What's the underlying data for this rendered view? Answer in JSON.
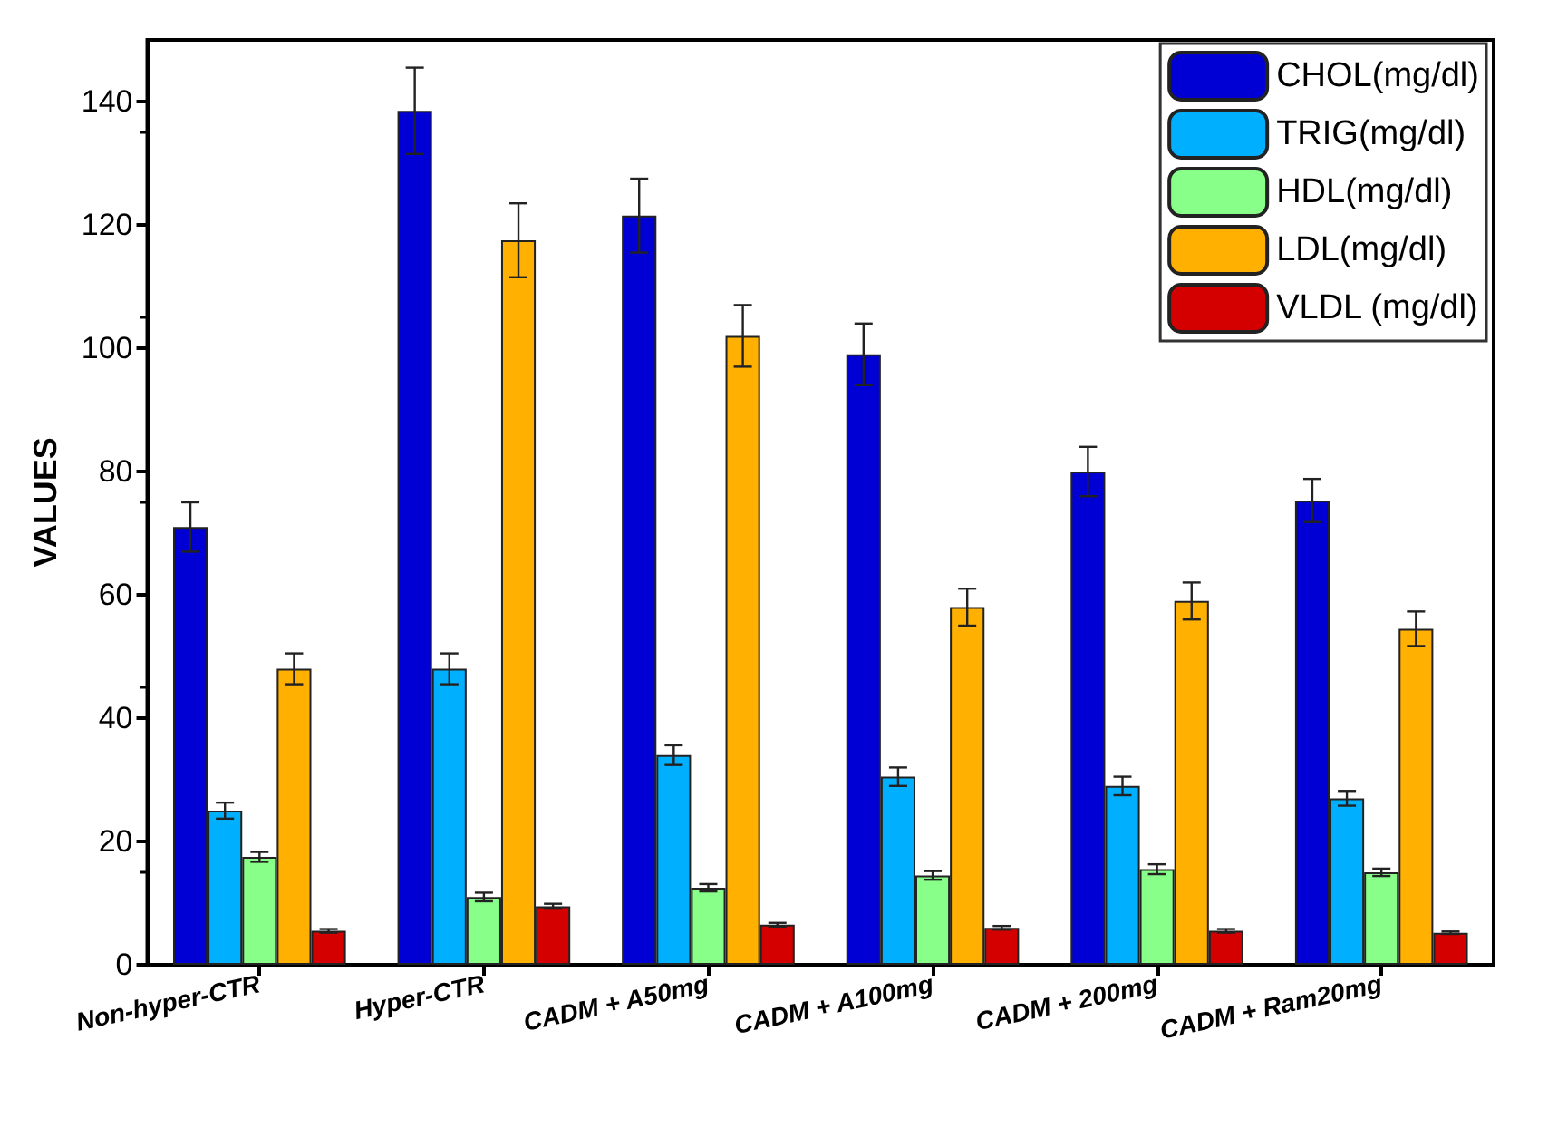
{
  "chart_data": {
    "type": "bar",
    "ylabel": "VALUES",
    "categories": [
      "Non-hyper-CTR",
      "Hyper-CTR",
      "CADM + A50mg",
      "CADM + A100mg",
      "CADM + 200mg",
      "CADM + Ram20mg"
    ],
    "series": [
      {
        "name": "CHOL(mg/dl)",
        "color": "#0000d4",
        "values": [
          71,
          138.5,
          121.5,
          99,
          80,
          75.3
        ],
        "errors": [
          4,
          7,
          6,
          5,
          4,
          3.5
        ]
      },
      {
        "name": "TRIG(mg/dl)",
        "color": "#00b0ff",
        "values": [
          25,
          48,
          34,
          30.5,
          29,
          27
        ],
        "errors": [
          1.3,
          2.5,
          1.6,
          1.5,
          1.5,
          1.2
        ]
      },
      {
        "name": "HDL(mg/dl)",
        "color": "#88ff88",
        "values": [
          17.5,
          11,
          12.5,
          14.5,
          15.5,
          15
        ],
        "errors": [
          0.8,
          0.7,
          0.6,
          0.7,
          0.8,
          0.6
        ]
      },
      {
        "name": "LDL(mg/dl)",
        "color": "#ffb000",
        "values": [
          48,
          117.5,
          102,
          58,
          59,
          54.5
        ],
        "errors": [
          2.5,
          6,
          5,
          3,
          3,
          2.8
        ]
      },
      {
        "name": "VLDL (mg/dl)",
        "color": "#d40000",
        "values": [
          5.5,
          9.5,
          6.5,
          6,
          5.5,
          5.2
        ],
        "errors": [
          0.3,
          0.4,
          0.3,
          0.3,
          0.3,
          0.2
        ]
      }
    ],
    "ylim": [
      0,
      150
    ],
    "yticks": [
      0,
      20,
      40,
      60,
      80,
      100,
      120,
      140
    ],
    "grid": false,
    "legend": "top right"
  }
}
